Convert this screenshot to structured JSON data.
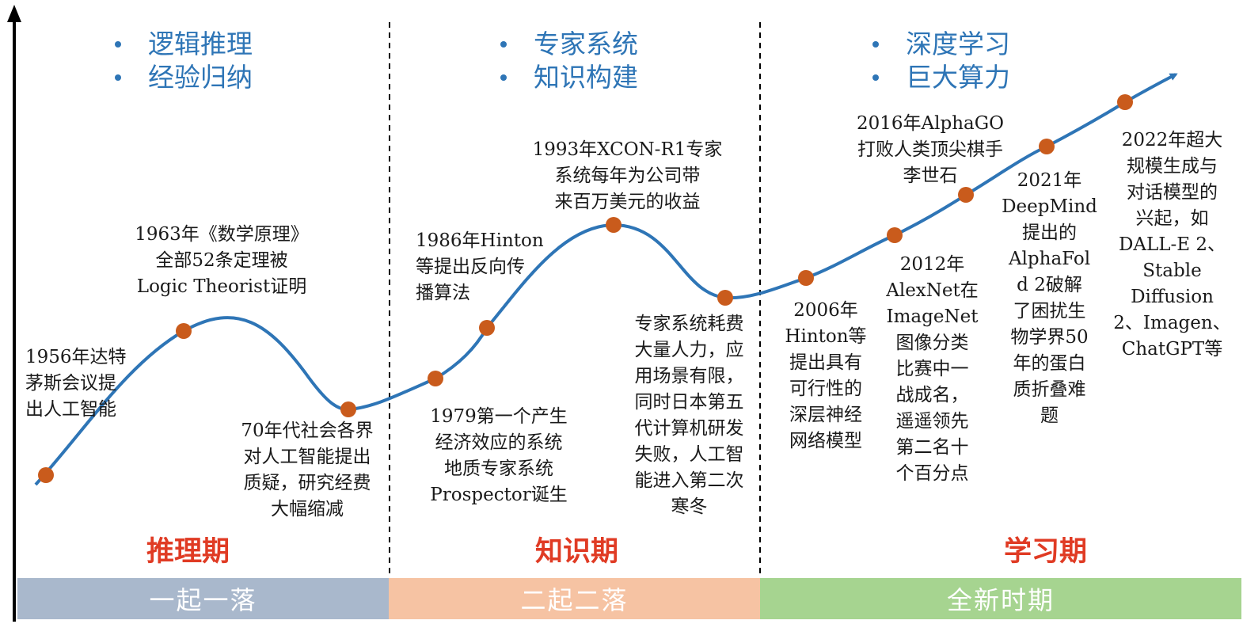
{
  "colors": {
    "curve": "#2e75b6",
    "marker": "#c95b1c",
    "bullet": "#2e75b6",
    "era_title": "#e03b24",
    "band_1": "#a9b8cc",
    "band_2": "#f6c3a3",
    "band_3": "#a6d490"
  },
  "periods": [
    {
      "bullets": [
        "逻辑推理",
        "经验归纳"
      ],
      "title": "推理期",
      "band": "一起一落"
    },
    {
      "bullets": [
        "专家系统",
        "知识构建"
      ],
      "title": "知识期",
      "band": "二起二落"
    },
    {
      "bullets": [
        "深度学习",
        "巨大算力"
      ],
      "title": "学习期",
      "band": "全新时期"
    }
  ],
  "events": [
    "1956年达特\n茅斯会议提\n出人工智能",
    "1963年《数学原理》\n全部52条定理被\nLogic Theorist证明",
    "70年代社会各界\n对人工智能提出\n质疑，研究经费\n大幅缩减",
    "1979第一个产生\n经济效应的系统\n地质专家系统\nProspector诞生",
    "1986年Hinton\n等提出反向传\n播算法",
    "1993年XCON-R1专家\n系统每年为公司带\n来百万美元的收益",
    "专家系统耗费\n大量人力，应\n用场景有限，\n同时日本第五\n代计算机研发\n失败，人工智\n能进入第二次\n寒冬",
    "2006年\nHinton等\n提出具有\n可行性的\n深层神经\n网络模型",
    "2012年\nAlexNet在\nImageNet\n图像分类\n比赛中一\n战成名，\n遥遥领先\n第二名十\n个百分点",
    "2016年AlphaGO\n打败人类顶尖棋手\n李世石",
    "2021年\nDeepMind\n提出的\nAlphaFol\nd 2破解\n了困扰生\n物学界50\n年的蛋白\n质折叠难\n题",
    "2022年超大\n规模生成与\n对话模型的\n兴起，如\nDALL-E 2、\nStable\nDiffusion\n2、Imagen、\nChatGPT等"
  ]
}
